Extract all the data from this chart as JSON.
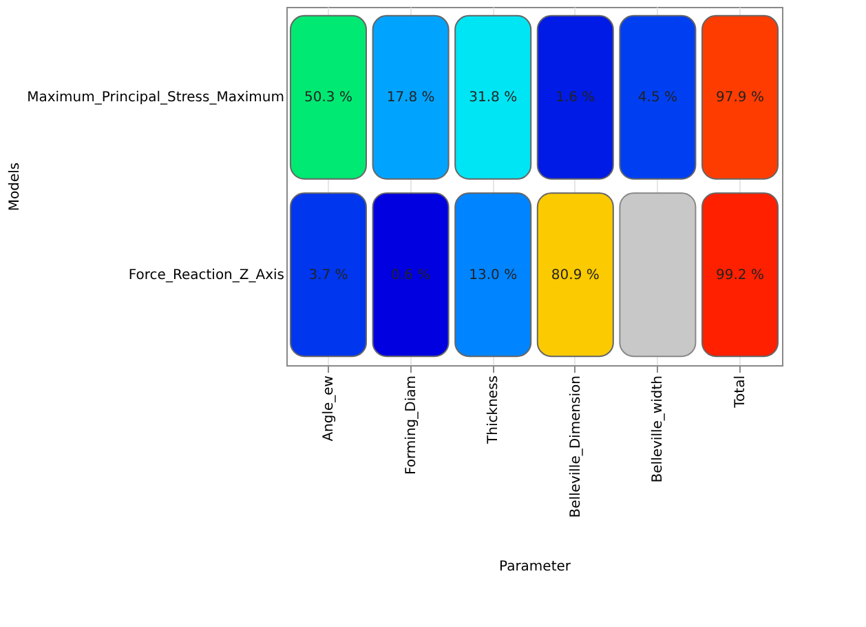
{
  "chart_data": {
    "type": "heatmap",
    "grid": "x",
    "xlabel": "Parameter",
    "ylabel": "Models",
    "categories": [
      "Angle_ew",
      "Forming_Diam",
      "Thickness",
      "Belleville_Dimension",
      "Belleville_width",
      "Total"
    ],
    "y_categories": [
      "Maximum_Principal_Stress_Maximum",
      "Force_Reaction_Z_Axis"
    ],
    "cells": [
      [
        50.3,
        17.8,
        31.8,
        1.6,
        4.5,
        97.9
      ],
      [
        3.7,
        0.6,
        13.0,
        80.9,
        null,
        99.2
      ]
    ],
    "cell_labels": [
      [
        "50.3 %",
        "17.8 %",
        "31.8 %",
        "1.6 %",
        "4.5 %",
        "97.9 %"
      ],
      [
        "3.7 %",
        "0.6 %",
        "13.0 %",
        "80.9 %",
        null,
        "99.2 %"
      ]
    ]
  }
}
